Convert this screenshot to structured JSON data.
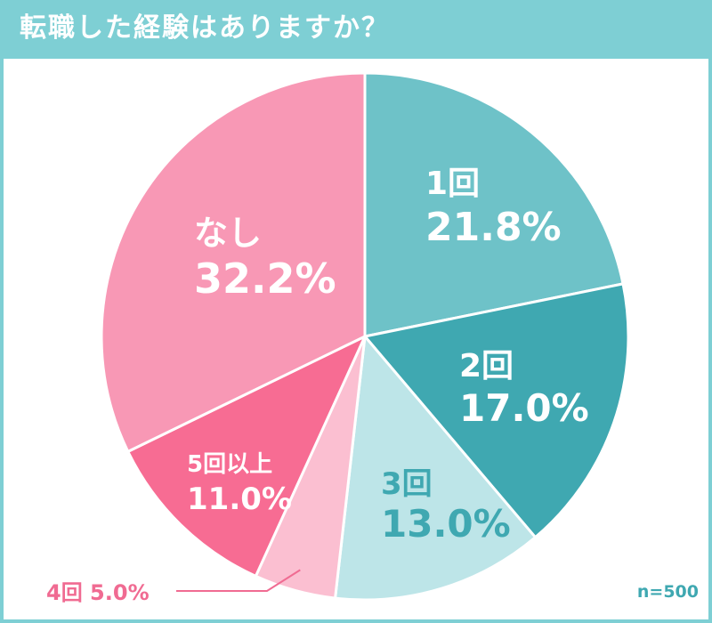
{
  "title": "転職した経験はありますか？",
  "sample_note": "n=500",
  "chart_data": {
    "type": "pie",
    "title": "転職した経験はありますか？",
    "start_angle_deg": 0,
    "direction": "clockwise",
    "slices": [
      {
        "label": "1回",
        "value": 21.8,
        "value_text": "21.8%",
        "color": "#6ec2c8",
        "label_color": "#ffffff"
      },
      {
        "label": "2回",
        "value": 17.0,
        "value_text": "17.0%",
        "color": "#3fa8b1",
        "label_color": "#ffffff"
      },
      {
        "label": "3回",
        "value": 13.0,
        "value_text": "13.0%",
        "color": "#bde5e8",
        "label_color": "#3fa8b1"
      },
      {
        "label": "4回",
        "value": 5.0,
        "value_text": "5.0%",
        "color": "#fbbfd1",
        "label_color": "#f06b92",
        "outside": true
      },
      {
        "label": "5回以上",
        "value": 11.0,
        "value_text": "11.0%",
        "color": "#f76c93",
        "label_color": "#ffffff"
      },
      {
        "label": "なし",
        "value": 32.2,
        "value_text": "32.2%",
        "color": "#f898b5",
        "label_color": "#ffffff"
      }
    ]
  }
}
